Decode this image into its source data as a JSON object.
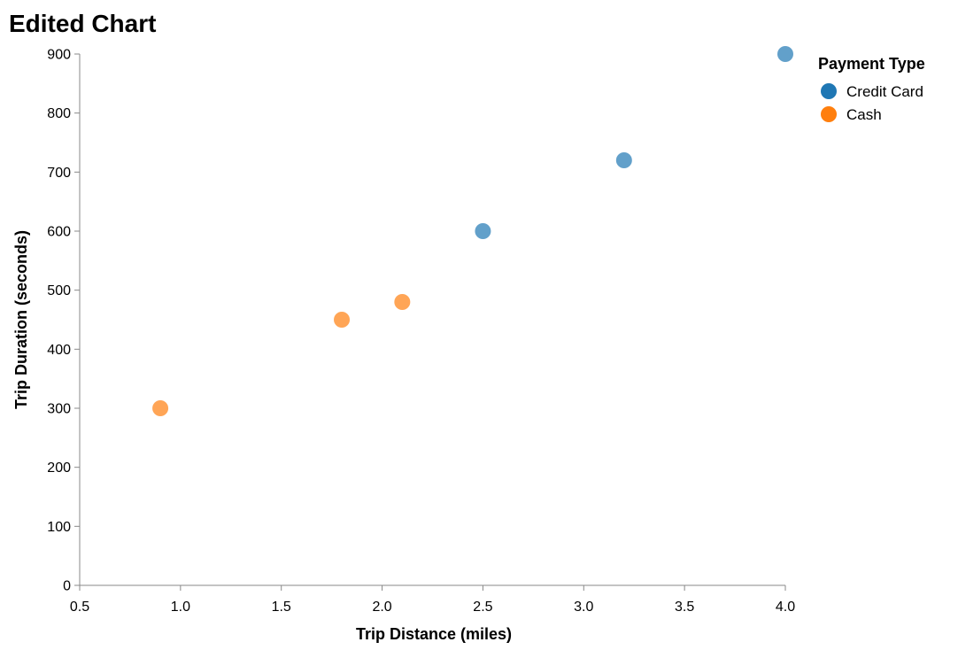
{
  "chart_data": {
    "type": "scatter",
    "title": "Edited Chart",
    "xlabel": "Trip Distance (miles)",
    "ylabel": "Trip Duration (seconds)",
    "xlim": [
      0.5,
      4.0
    ],
    "ylim": [
      0,
      900
    ],
    "x_ticks": [
      "0.5",
      "1.0",
      "1.5",
      "2.0",
      "2.5",
      "3.0",
      "3.5",
      "4.0"
    ],
    "y_ticks": [
      "0",
      "100",
      "200",
      "300",
      "400",
      "500",
      "600",
      "700",
      "800",
      "900"
    ],
    "grid": false,
    "legend": {
      "title": "Payment Type",
      "placement": "top-right"
    },
    "series": [
      {
        "name": "Credit Card",
        "color": "#1f77b4",
        "points": [
          {
            "x": 2.5,
            "y": 600
          },
          {
            "x": 3.2,
            "y": 720
          },
          {
            "x": 4.0,
            "y": 900
          }
        ]
      },
      {
        "name": "Cash",
        "color": "#ff7f0e",
        "points": [
          {
            "x": 0.9,
            "y": 300
          },
          {
            "x": 1.8,
            "y": 450
          },
          {
            "x": 2.1,
            "y": 480
          }
        ]
      }
    ]
  }
}
